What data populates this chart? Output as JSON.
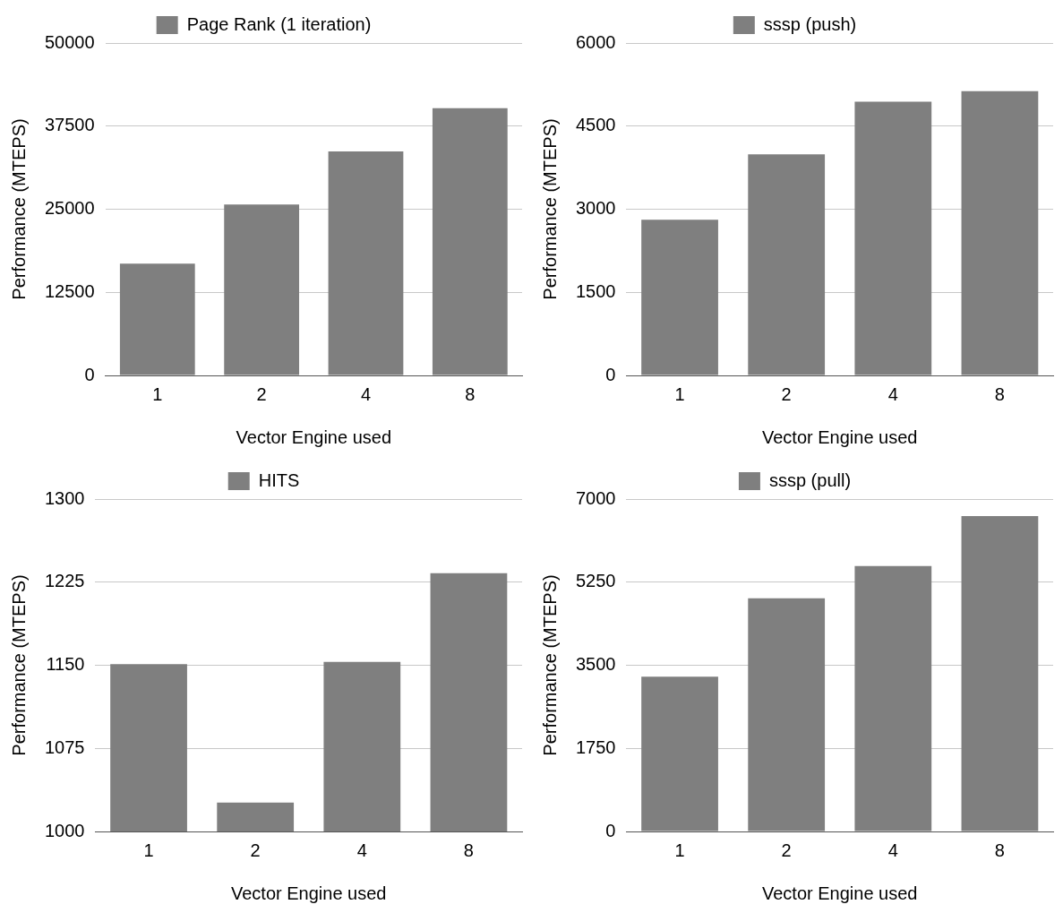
{
  "chart_data": [
    {
      "type": "bar",
      "categories": [
        "1",
        "2",
        "4",
        "8"
      ],
      "xlabel": "Vector Engine used",
      "ylabel": "Performance (MTEPS)",
      "series": [
        {
          "name": "Page Rank (1 iteration)",
          "color": "#7f7f7f",
          "values": [
            16800,
            25700,
            33700,
            40200
          ]
        }
      ],
      "ylim": [
        0,
        50000
      ],
      "yticks": [
        0,
        12500,
        25000,
        37500,
        50000
      ],
      "grid": "y",
      "legend": "top"
    },
    {
      "type": "bar",
      "categories": [
        "1",
        "2",
        "4",
        "8"
      ],
      "xlabel": "Vector Engine used",
      "ylabel": "Performance (MTEPS)",
      "series": [
        {
          "name": "sssp (push)",
          "color": "#7f7f7f",
          "values": [
            2810,
            3990,
            4940,
            5130
          ]
        }
      ],
      "ylim": [
        0,
        6000
      ],
      "yticks": [
        0,
        1500,
        3000,
        4500,
        6000
      ],
      "grid": "y",
      "legend": "top"
    },
    {
      "type": "bar",
      "categories": [
        "1",
        "2",
        "4",
        "8"
      ],
      "xlabel": "Vector Engine used",
      "ylabel": "Performance (MTEPS)",
      "series": [
        {
          "name": "HITS",
          "color": "#7f7f7f",
          "values": [
            1151,
            1026,
            1153,
            1233
          ]
        }
      ],
      "ylim": [
        1000,
        1300
      ],
      "yticks": [
        1000,
        1075,
        1150,
        1225,
        1300
      ],
      "grid": "y",
      "legend": "top"
    },
    {
      "type": "bar",
      "categories": [
        "1",
        "2",
        "4",
        "8"
      ],
      "xlabel": "Vector Engine used",
      "ylabel": "Performance (MTEPS)",
      "series": [
        {
          "name": "sssp (pull)",
          "color": "#7f7f7f",
          "values": [
            3260,
            4910,
            5590,
            6640
          ]
        }
      ],
      "ylim": [
        0,
        7000
      ],
      "yticks": [
        0,
        1750,
        3500,
        5250,
        7000
      ],
      "grid": "y",
      "legend": "top"
    }
  ]
}
